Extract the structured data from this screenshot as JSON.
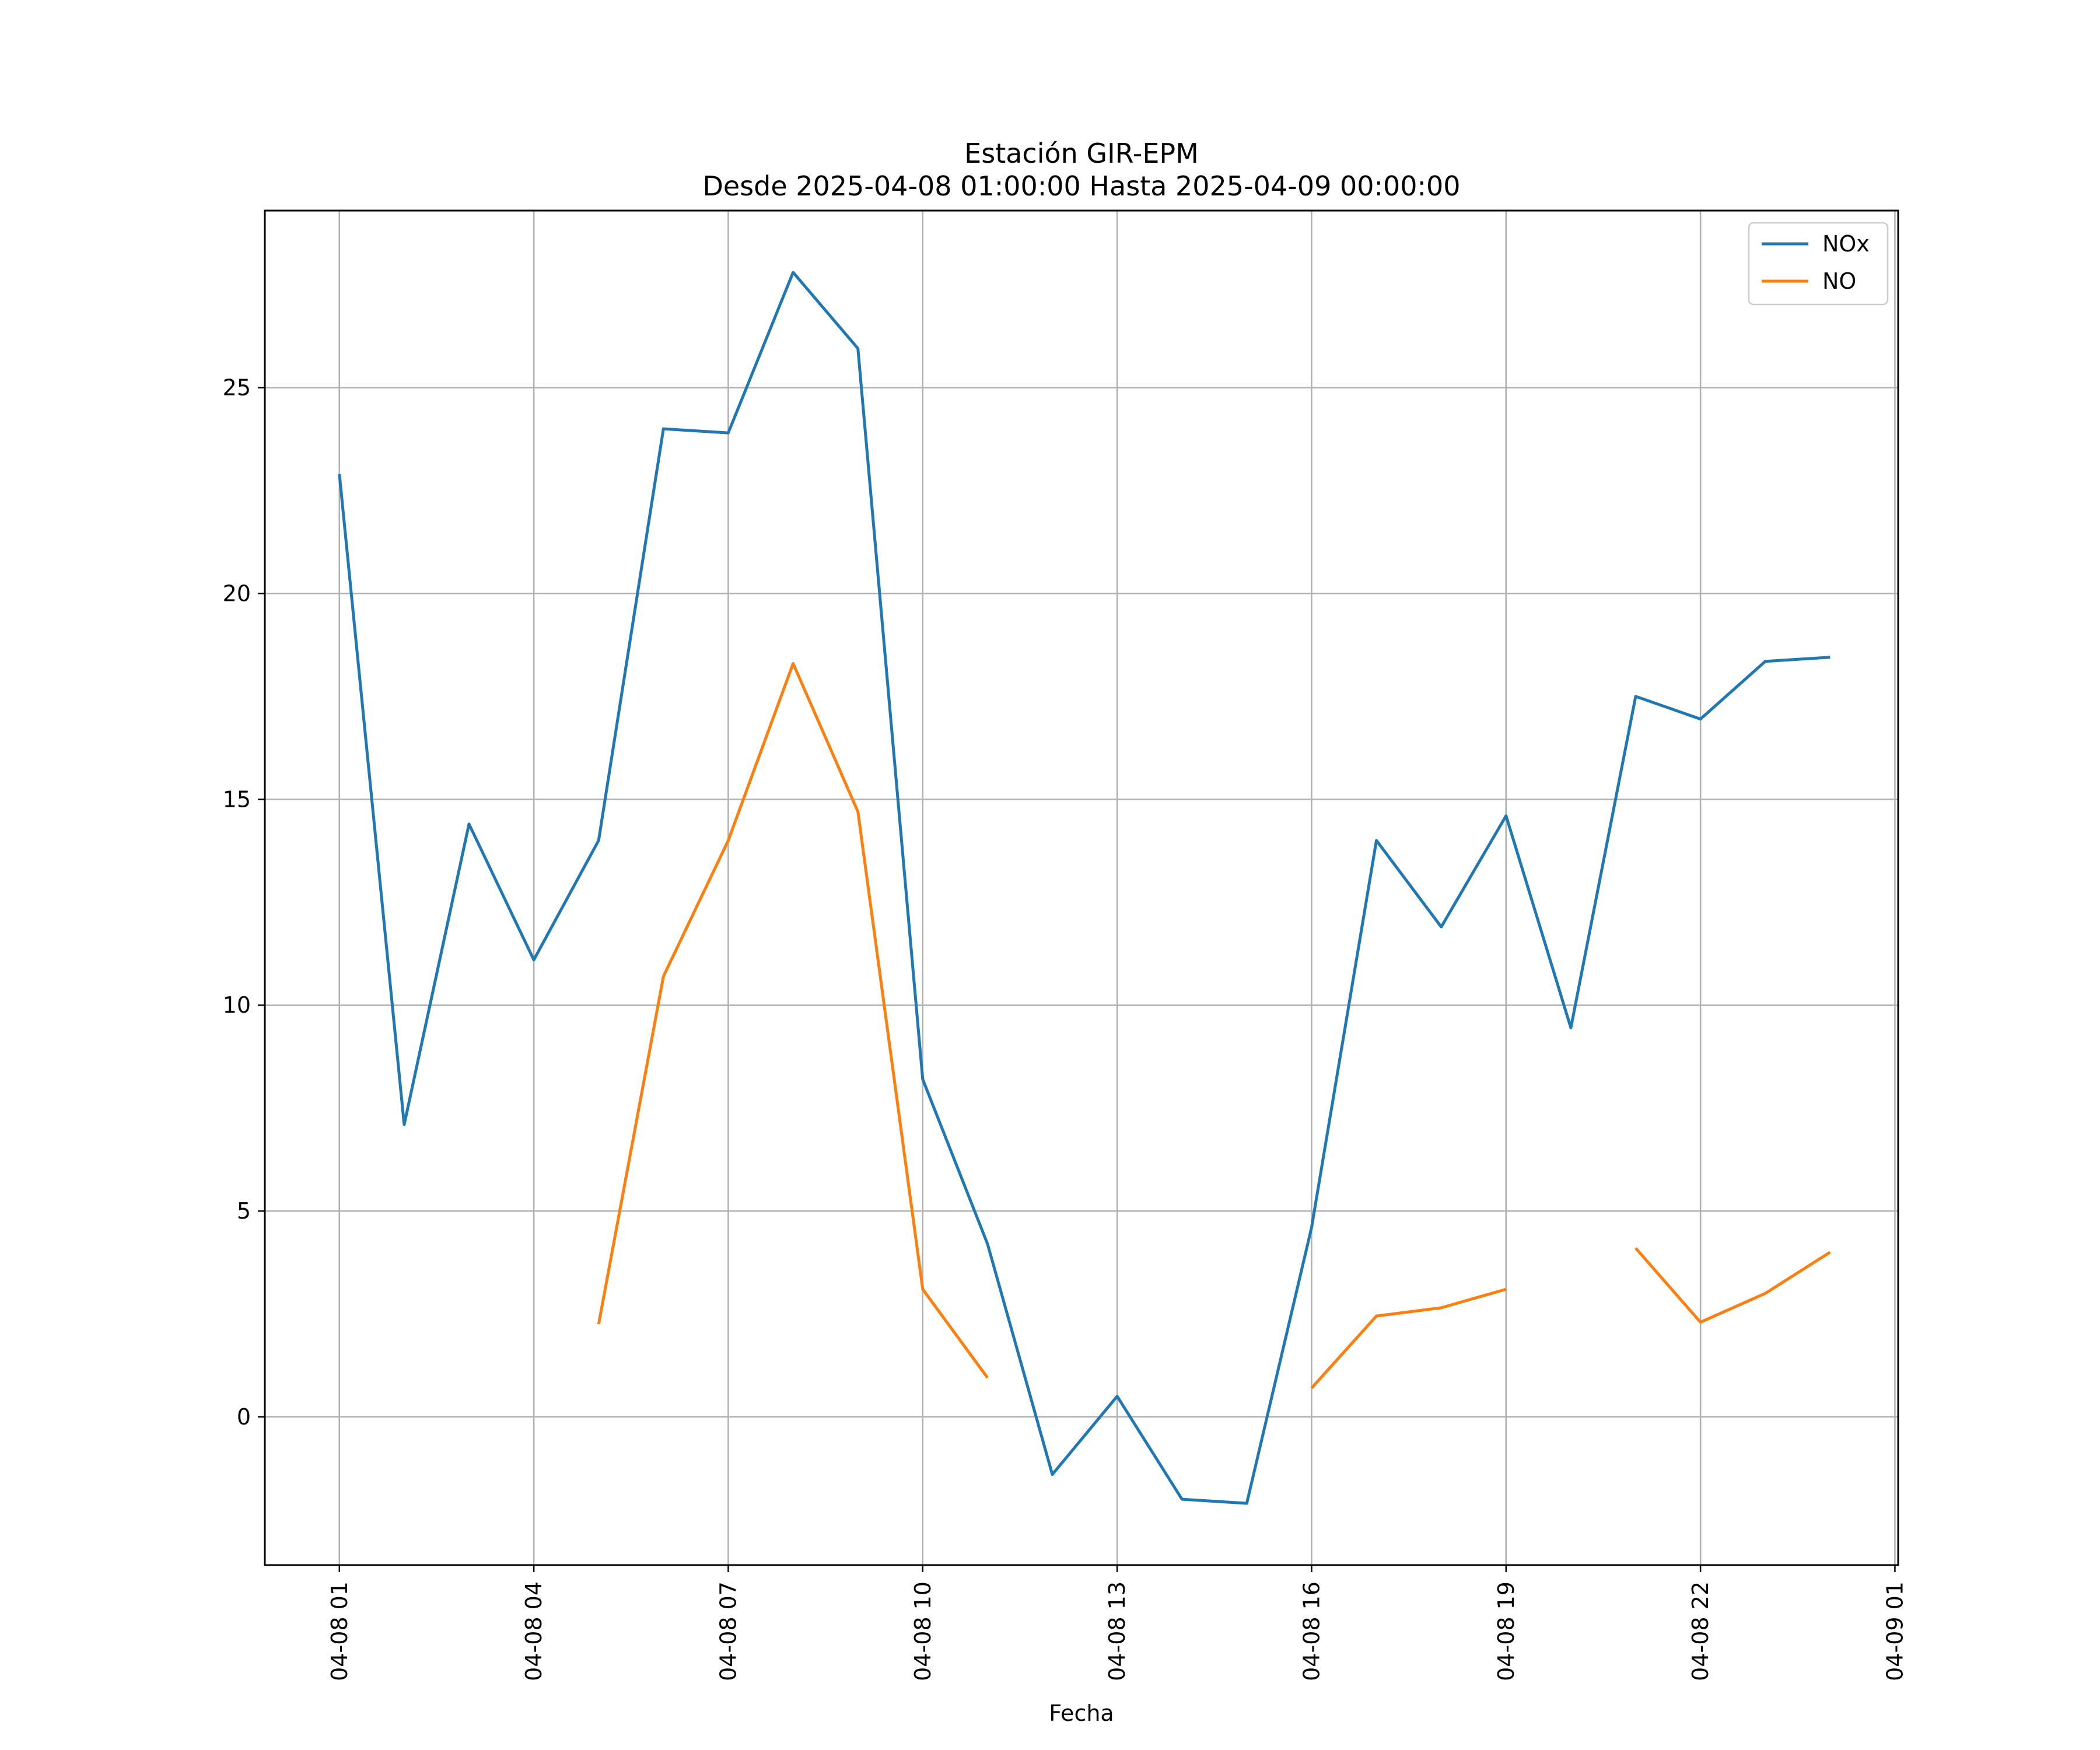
{
  "chart_data": {
    "type": "line",
    "title": "Estación GIR-EPM",
    "subtitle": "Desde 2025-04-08 01:00:00 Hasta 2025-04-09 00:00:00",
    "xlabel": "Fecha",
    "ylabel": "",
    "x": [
      "04-08 01",
      "04-08 02",
      "04-08 03",
      "04-08 04",
      "04-08 05",
      "04-08 06",
      "04-08 07",
      "04-08 08",
      "04-08 09",
      "04-08 10",
      "04-08 11",
      "04-08 12",
      "04-08 13",
      "04-08 14",
      "04-08 15",
      "04-08 16",
      "04-08 17",
      "04-08 18",
      "04-08 19",
      "04-08 20",
      "04-08 21",
      "04-08 22",
      "04-08 23",
      "04-09 00"
    ],
    "x_tick_labels": [
      "04-08 01",
      "04-08 04",
      "04-08 07",
      "04-08 10",
      "04-08 13",
      "04-08 16",
      "04-08 19",
      "04-08 22",
      "04-09 01"
    ],
    "y_ticks": [
      0,
      5,
      10,
      15,
      20,
      25
    ],
    "ylim": [
      -3.6,
      29.3
    ],
    "grid": true,
    "legend_position": "top-right",
    "series": [
      {
        "name": "NOx",
        "color": "#1f77b4",
        "values": [
          22.9,
          7.1,
          14.4,
          11.1,
          14.0,
          24.0,
          23.9,
          27.8,
          25.95,
          8.2,
          4.2,
          -1.4,
          0.5,
          -2.0,
          -2.1,
          4.6,
          14.0,
          11.9,
          14.6,
          9.45,
          17.5,
          16.95,
          18.35,
          18.45
        ]
      },
      {
        "name": "NO",
        "color": "#ff7f0e",
        "values": [
          null,
          null,
          null,
          null,
          2.25,
          10.7,
          14.0,
          18.3,
          14.7,
          3.1,
          0.95,
          null,
          null,
          null,
          null,
          0.7,
          2.45,
          2.65,
          3.1,
          null,
          4.1,
          2.3,
          3.0,
          4.0
        ]
      }
    ]
  }
}
